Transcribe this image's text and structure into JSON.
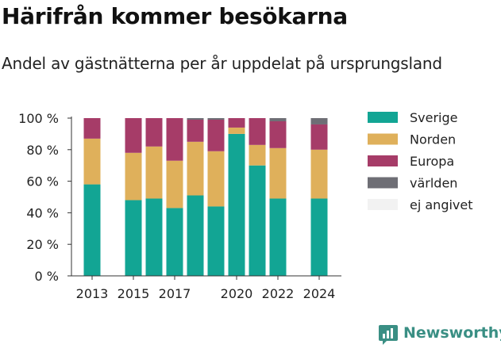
{
  "title": "Härifrån kommer besökarna",
  "subtitle": "Andel av gästnätterna per år uppdelat på ursprungsland",
  "brand": "Newsworthy",
  "chart_data": {
    "type": "bar",
    "stacked": true,
    "categories": [
      "2013",
      "2015",
      "2016",
      "2017",
      "2018",
      "2019",
      "2020",
      "2021",
      "2022",
      "2024"
    ],
    "x_ticks": [
      "2013",
      "2015",
      "2017",
      "2020",
      "2022",
      "2024"
    ],
    "y_ticks": [
      "0 %",
      "20 %",
      "40 %",
      "60 %",
      "80 %",
      "100 %"
    ],
    "ylim": [
      0,
      100
    ],
    "grid": false,
    "legend": "right",
    "series": [
      {
        "name": "Sverige",
        "color": "#12a594",
        "values": [
          58,
          48,
          49,
          43,
          51,
          44,
          90,
          70,
          49,
          49
        ]
      },
      {
        "name": "Norden",
        "color": "#dfb05b",
        "values": [
          29,
          30,
          33,
          30,
          34,
          35,
          4,
          13,
          32,
          31
        ]
      },
      {
        "name": "Europa",
        "color": "#a63c68",
        "values": [
          13,
          22,
          18,
          27,
          14,
          20,
          6,
          17,
          17,
          16
        ]
      },
      {
        "name": "världen",
        "color": "#6e6e75",
        "values": [
          0,
          0,
          0,
          0,
          1,
          1,
          0,
          0,
          2,
          4
        ]
      },
      {
        "name": "ej angivet",
        "color": "#f2f2f2",
        "values": [
          0,
          0,
          0,
          0,
          0,
          0,
          0,
          0,
          0,
          0
        ]
      }
    ]
  }
}
